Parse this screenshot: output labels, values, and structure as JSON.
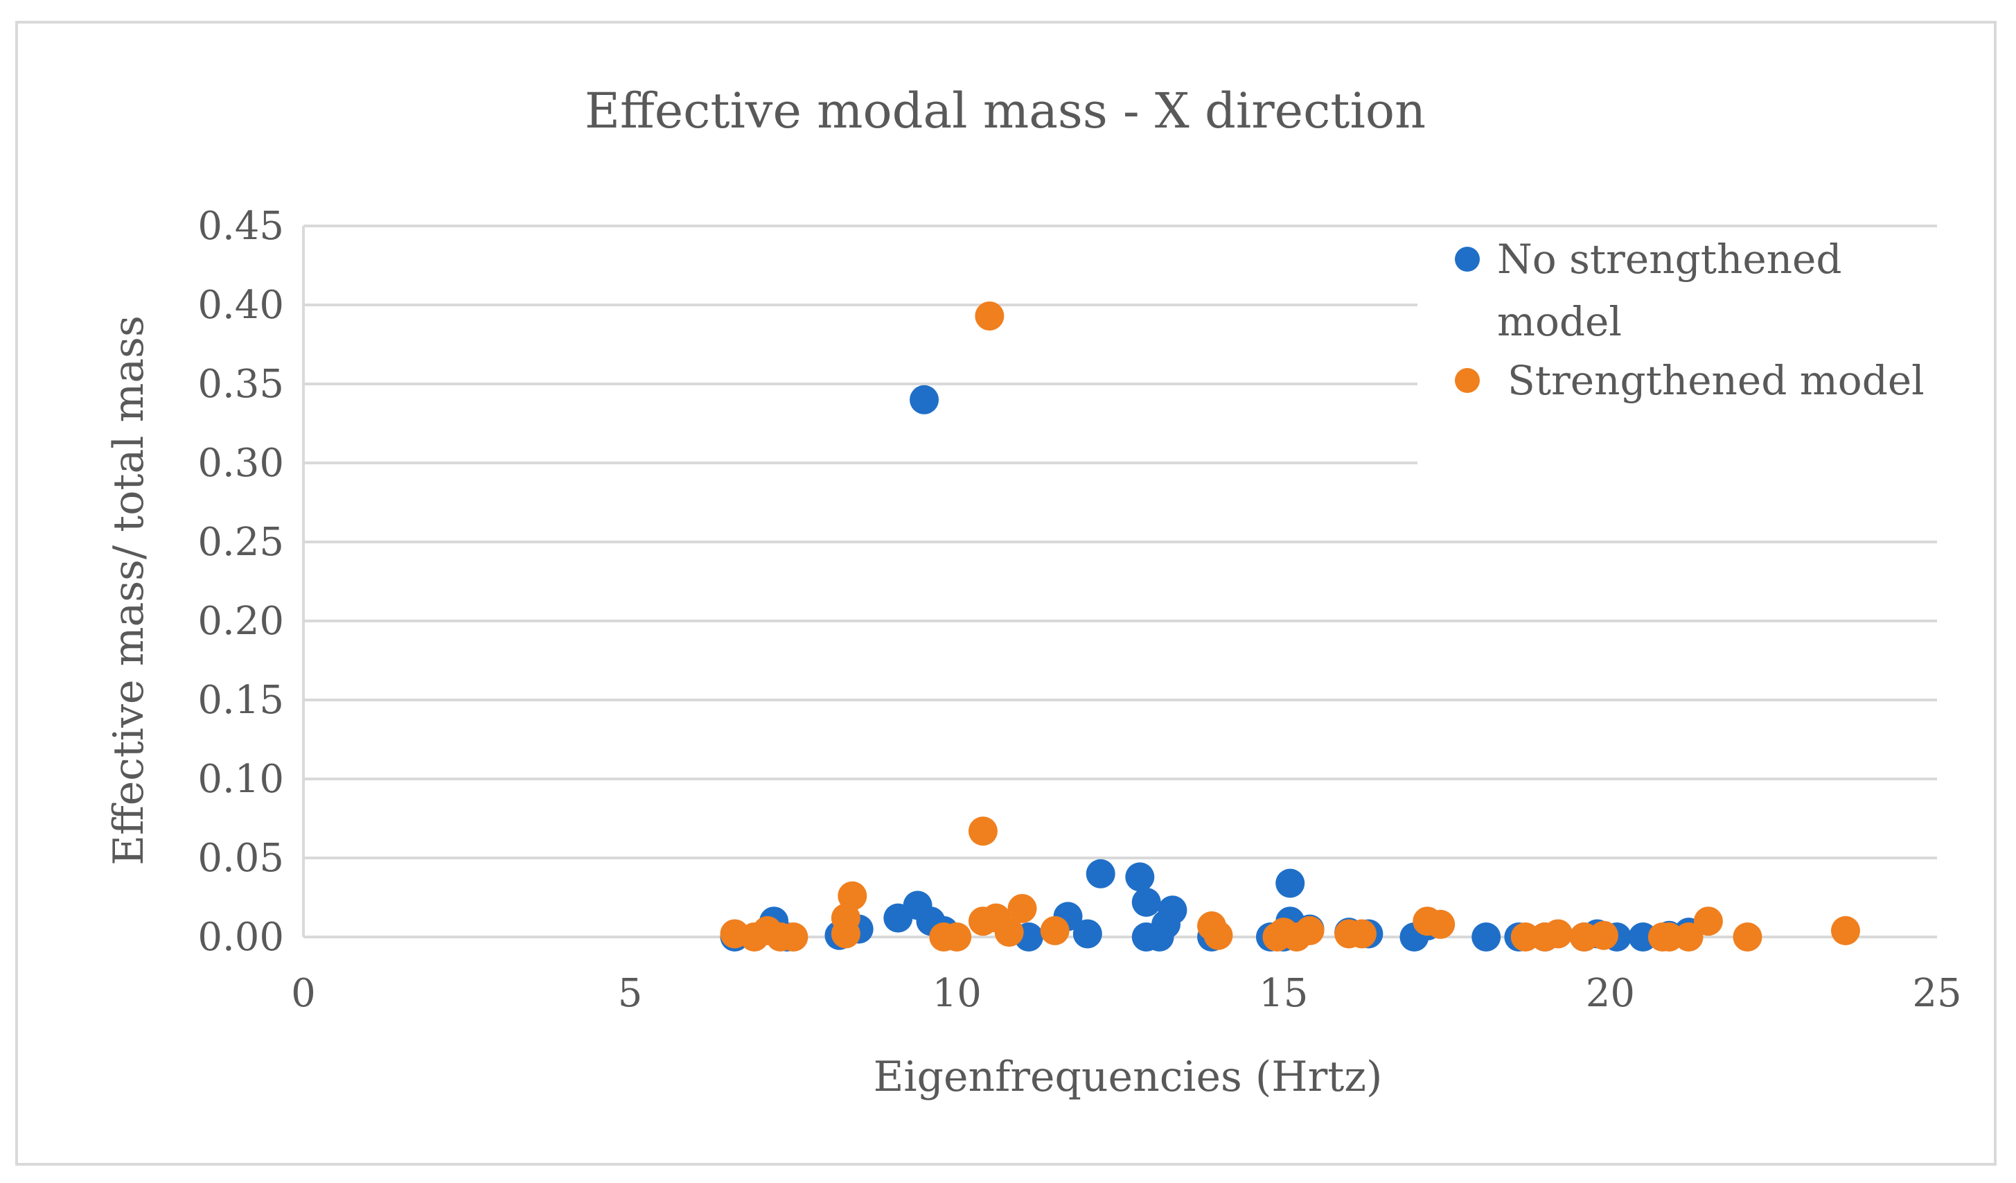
{
  "chart_data": {
    "type": "scatter",
    "title": "Effective modal mass - X direction",
    "xlabel": "Eigenfrequencies (Hrtz)",
    "ylabel": "Effective mass/ total mass",
    "xlim": [
      0,
      25
    ],
    "ylim": [
      0,
      0.45
    ],
    "x_ticks": [
      "0",
      "5",
      "10",
      "15",
      "20",
      "25"
    ],
    "y_ticks": [
      "0.00",
      "0.05",
      "0.10",
      "0.15",
      "0.20",
      "0.25",
      "0.30",
      "0.35",
      "0.40",
      "0.45"
    ],
    "grid": true,
    "legend_position": "top-right",
    "legend_lines": [
      [
        "No strengthened",
        "model"
      ],
      [
        "Strengthened model"
      ]
    ],
    "series": [
      {
        "name": "No strengthened model",
        "color": "#1f6fc8",
        "points": [
          [
            6.6,
            0.0
          ],
          [
            7.2,
            0.01
          ],
          [
            7.4,
            0.0
          ],
          [
            8.2,
            0.001
          ],
          [
            8.5,
            0.005
          ],
          [
            9.1,
            0.012
          ],
          [
            9.4,
            0.02
          ],
          [
            9.5,
            0.34
          ],
          [
            9.6,
            0.01
          ],
          [
            9.8,
            0.004
          ],
          [
            11.1,
            0.0
          ],
          [
            11.7,
            0.013
          ],
          [
            12.0,
            0.002
          ],
          [
            12.2,
            0.04
          ],
          [
            12.8,
            0.038
          ],
          [
            12.9,
            0.022
          ],
          [
            12.9,
            0.0
          ],
          [
            13.1,
            0.0
          ],
          [
            13.2,
            0.008
          ],
          [
            13.3,
            0.017
          ],
          [
            13.9,
            0.0
          ],
          [
            14.8,
            0.0
          ],
          [
            15.0,
            0.0
          ],
          [
            15.1,
            0.034
          ],
          [
            15.1,
            0.01
          ],
          [
            15.4,
            0.005
          ],
          [
            16.0,
            0.003
          ],
          [
            16.3,
            0.002
          ],
          [
            17.0,
            0.0
          ],
          [
            17.2,
            0.007
          ],
          [
            18.1,
            0.0
          ],
          [
            18.6,
            0.0
          ],
          [
            19.0,
            0.0
          ],
          [
            19.6,
            0.0
          ],
          [
            19.8,
            0.002
          ],
          [
            20.1,
            0.0
          ],
          [
            20.5,
            0.0
          ],
          [
            20.9,
            0.001
          ],
          [
            21.2,
            0.003
          ]
        ]
      },
      {
        "name": "Strengthened model",
        "color": "#f07f1e",
        "points": [
          [
            6.6,
            0.002
          ],
          [
            6.9,
            0.0
          ],
          [
            7.1,
            0.004
          ],
          [
            7.3,
            0.0
          ],
          [
            7.5,
            0.0
          ],
          [
            8.3,
            0.002
          ],
          [
            8.3,
            0.012
          ],
          [
            8.4,
            0.026
          ],
          [
            9.8,
            0.0
          ],
          [
            10.0,
            0.0
          ],
          [
            10.4,
            0.067
          ],
          [
            10.4,
            0.01
          ],
          [
            10.5,
            0.393
          ],
          [
            10.6,
            0.012
          ],
          [
            10.8,
            0.003
          ],
          [
            11.0,
            0.018
          ],
          [
            11.5,
            0.004
          ],
          [
            13.9,
            0.007
          ],
          [
            14.0,
            0.001
          ],
          [
            14.9,
            0.0
          ],
          [
            15.0,
            0.003
          ],
          [
            15.2,
            0.0
          ],
          [
            15.4,
            0.004
          ],
          [
            16.0,
            0.002
          ],
          [
            16.2,
            0.002
          ],
          [
            17.2,
            0.01
          ],
          [
            17.4,
            0.008
          ],
          [
            18.7,
            0.0
          ],
          [
            19.0,
            0.0
          ],
          [
            19.2,
            0.002
          ],
          [
            19.6,
            0.0
          ],
          [
            19.9,
            0.001
          ],
          [
            20.8,
            0.0
          ],
          [
            20.9,
            0.0
          ],
          [
            21.2,
            0.0
          ],
          [
            21.5,
            0.01
          ],
          [
            22.1,
            0.0
          ],
          [
            23.6,
            0.004
          ]
        ]
      }
    ]
  }
}
